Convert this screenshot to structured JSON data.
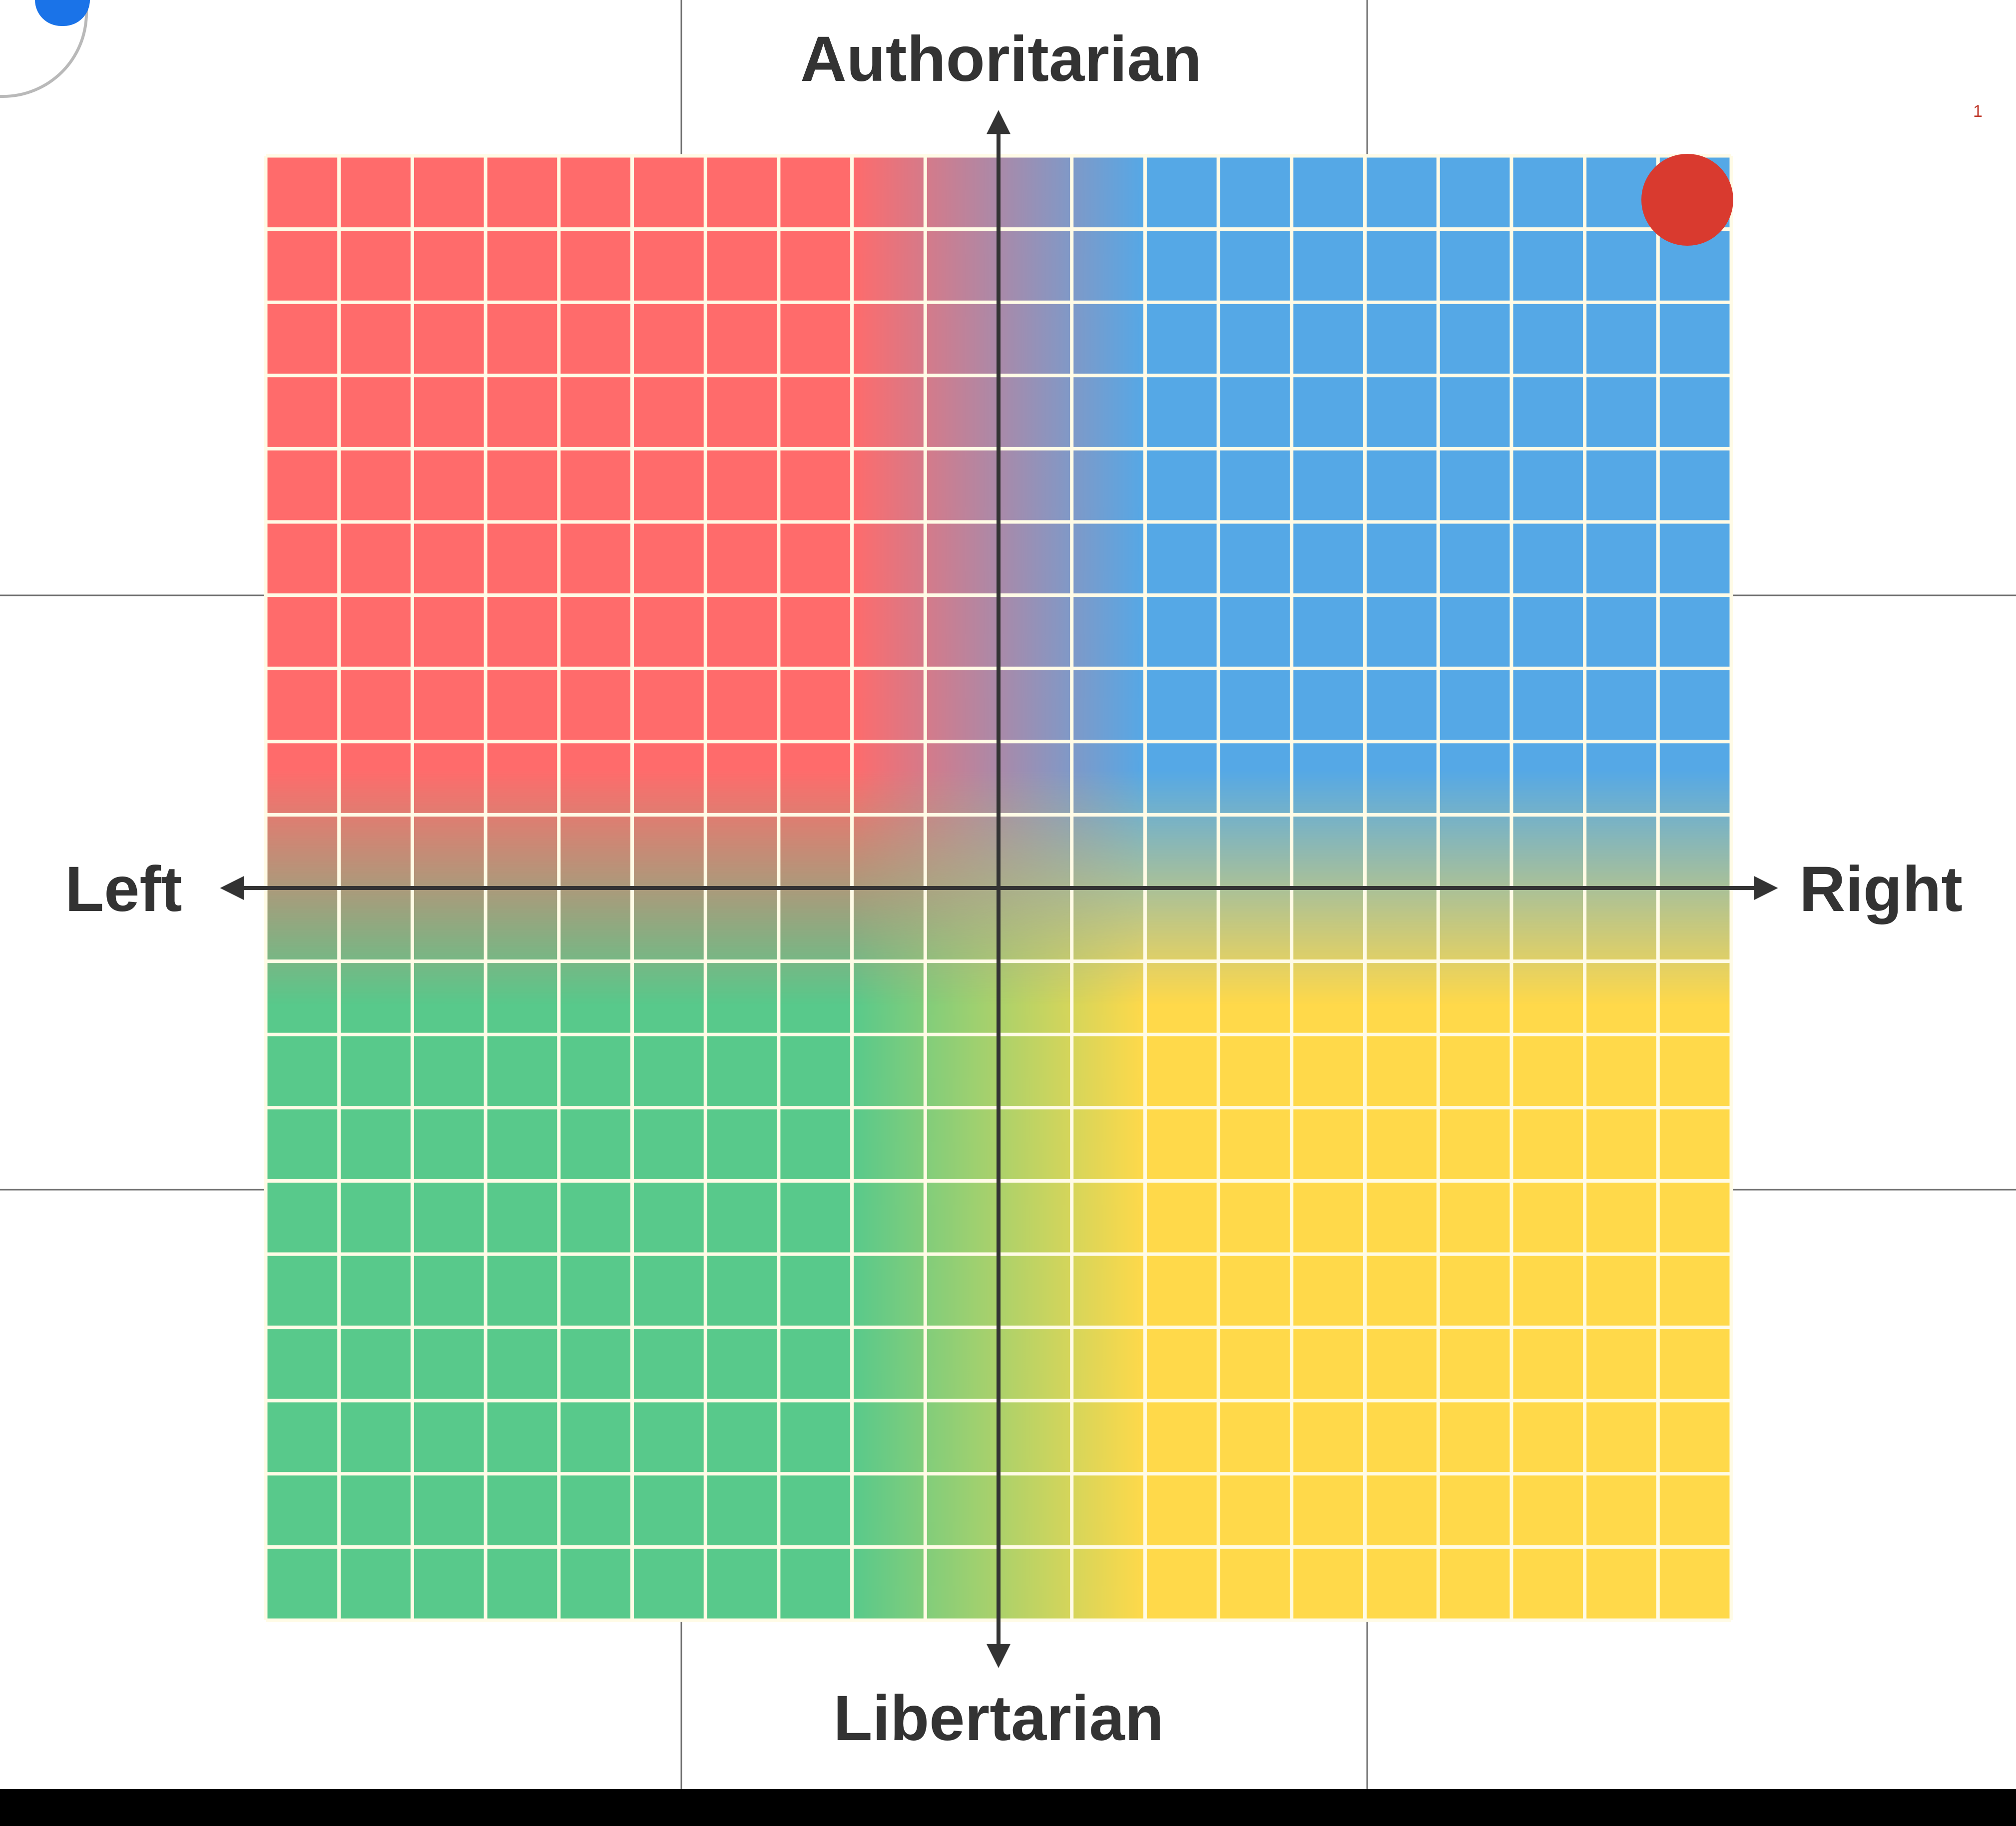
{
  "chart_data": {
    "type": "scatter",
    "title": "",
    "xlabel_left": "Left",
    "xlabel_right": "Right",
    "ylabel_top": "Authoritarian",
    "ylabel_bottom": "Libertarian",
    "xlim": [
      -10,
      10
    ],
    "ylim": [
      -10,
      10
    ],
    "grid": true,
    "grid_divisions": 20,
    "quadrant_colors": {
      "top_left": "#ff6b6b",
      "top_right": "#55a8e6",
      "bottom_left": "#58c98b",
      "bottom_right": "#ffd94a"
    },
    "points": [
      {
        "x": 9.4,
        "y": 9.4,
        "color": "#d93a2f"
      }
    ],
    "stray_mark": "1"
  }
}
